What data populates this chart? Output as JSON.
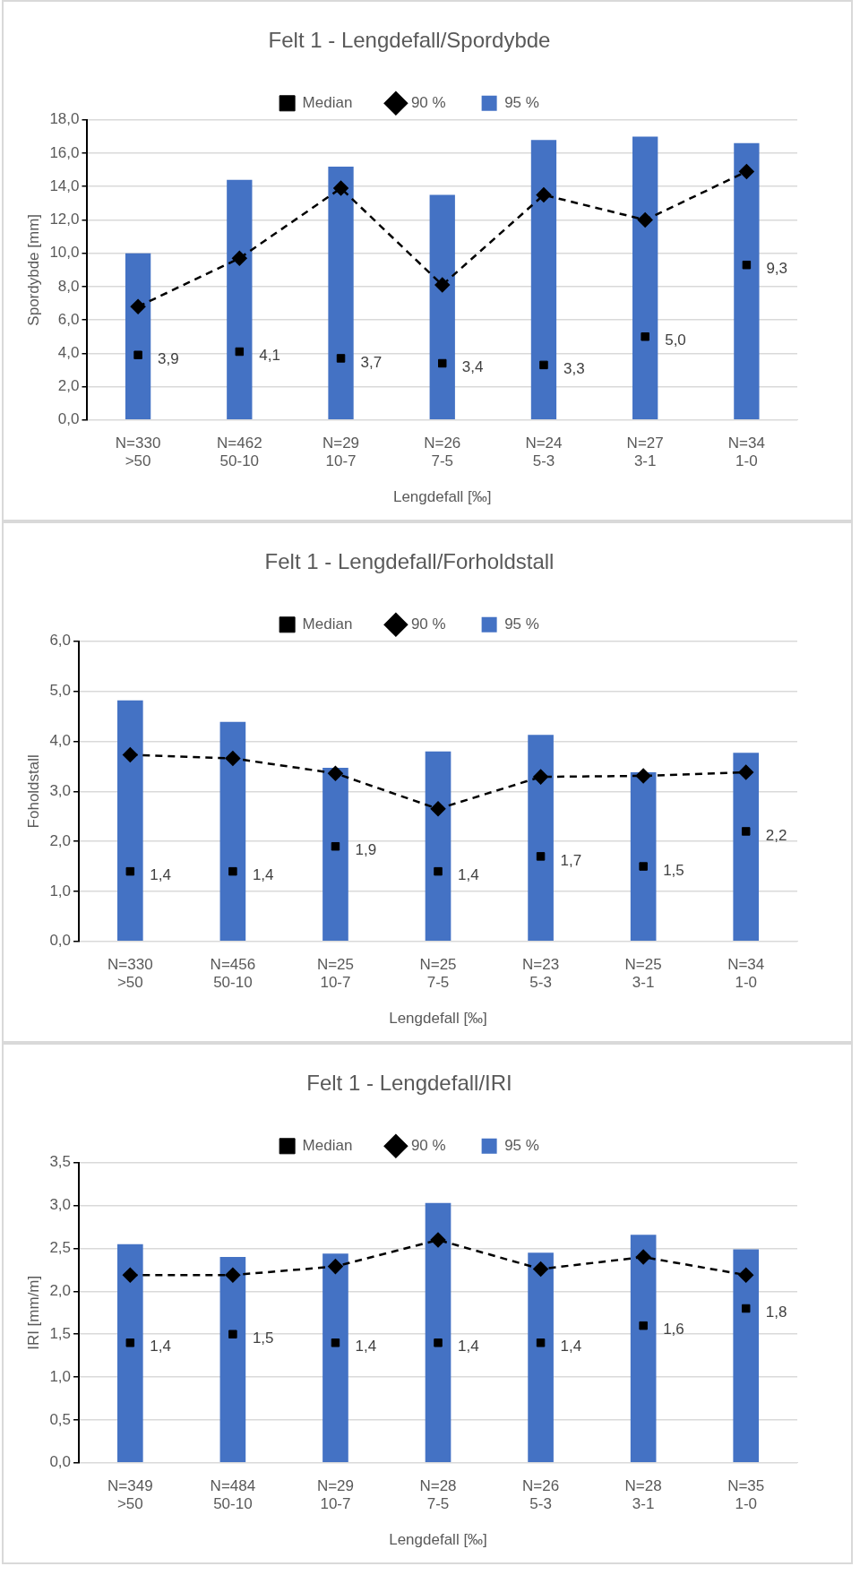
{
  "chart_data": [
    {
      "type": "bar",
      "title": "Felt 1 - Lengdefall/Spordybde",
      "xlabel": "Lengdefall [‰]",
      "ylabel": "Spordybde [mm]",
      "legend": "top",
      "grid": "y",
      "categories": [
        "N=330\n>50",
        "N=462\n50-10",
        "N=29\n10-7",
        "N=26\n7-5",
        "N=24\n5-3",
        "N=27\n3-1",
        "N=34\n1-0"
      ],
      "ylim": [
        0,
        18
      ],
      "yticks": [
        {
          "value": 0,
          "label": "0,0"
        },
        {
          "value": 2,
          "label": "2,0"
        },
        {
          "value": 4,
          "label": "4,0"
        },
        {
          "value": 6,
          "label": "6,0"
        },
        {
          "value": 8,
          "label": "8,0"
        },
        {
          "value": 10,
          "label": "10,0"
        },
        {
          "value": 12,
          "label": "12,0"
        },
        {
          "value": 14,
          "label": "14,0"
        },
        {
          "value": 16,
          "label": "16,0"
        },
        {
          "value": 18,
          "label": "18,0"
        }
      ],
      "series": [
        {
          "name": "95 %",
          "color": "#4472c4",
          "values": [
            10.0,
            14.4,
            15.2,
            13.5,
            16.8,
            17.0,
            16.6
          ]
        },
        {
          "name": "90 %",
          "type": "line",
          "color": "#000000",
          "marker": "diamond",
          "line_style": "dashed",
          "values": [
            6.8,
            9.7,
            13.9,
            8.1,
            13.5,
            12.0,
            14.9
          ]
        },
        {
          "name": "Median",
          "type": "scatter",
          "color": "#000000",
          "marker": "square",
          "x": [
            "N=330\n>50",
            "N=462\n50-10",
            "N=29\n10-7",
            "N=26\n7-5",
            "N=24\n5-3",
            "N=27\n3-1",
            "N=34\n1-0"
          ],
          "values": [
            3.9,
            4.1,
            3.7,
            3.4,
            3.3,
            5.0,
            9.3
          ],
          "value_labels": [
            "3,9",
            "4,1",
            "3,7",
            "3,4",
            "3,3",
            "5,0",
            "9,3"
          ]
        }
      ]
    },
    {
      "type": "bar",
      "title": "Felt 1 - Lengdefall/Forholdstall",
      "xlabel": "Lengdefall [‰]",
      "ylabel": "Foholdstall",
      "legend": "top",
      "grid": "y",
      "categories": [
        "N=330\n>50",
        "N=456\n50-10",
        "N=25\n10-7",
        "N=25\n7-5",
        "N=23\n5-3",
        "N=25\n3-1",
        "N=34\n1-0"
      ],
      "ylim": [
        0,
        6
      ],
      "yticks": [
        {
          "value": 0,
          "label": "0,0"
        },
        {
          "value": 1,
          "label": "1,0"
        },
        {
          "value": 2,
          "label": "2,0"
        },
        {
          "value": 3,
          "label": "3,0"
        },
        {
          "value": 4,
          "label": "4,0"
        },
        {
          "value": 5,
          "label": "5,0"
        },
        {
          "value": 6,
          "label": "6,0"
        }
      ],
      "series": [
        {
          "name": "95 %",
          "color": "#4472c4",
          "values": [
            4.82,
            4.39,
            3.47,
            3.8,
            4.13,
            3.38,
            3.77
          ]
        },
        {
          "name": "90 %",
          "type": "line",
          "color": "#000000",
          "marker": "diamond",
          "line_style": "dashed",
          "values": [
            3.73,
            3.66,
            3.36,
            2.65,
            3.29,
            3.31,
            3.38
          ]
        },
        {
          "name": "Median",
          "type": "scatter",
          "color": "#000000",
          "marker": "square",
          "x": [
            "N=330\n>50",
            "N=456\n50-10",
            "N=25\n10-7",
            "N=25\n7-5",
            "N=23\n5-3",
            "N=25\n3-1",
            "N=34\n1-0"
          ],
          "values": [
            1.4,
            1.4,
            1.9,
            1.4,
            1.7,
            1.5,
            2.2
          ],
          "value_labels": [
            "1,4",
            "1,4",
            "1,9",
            "1,4",
            "1,7",
            "1,5",
            "2,2"
          ]
        }
      ]
    },
    {
      "type": "bar",
      "title": "Felt 1 - Lengdefall/IRI",
      "xlabel": "Lengdefall [‰]",
      "ylabel": "IRI [mm/m]",
      "legend": "top",
      "grid": "y",
      "categories": [
        "N=349\n>50",
        "N=484\n50-10",
        "N=29\n10-7",
        "N=28\n7-5",
        "N=26\n5-3",
        "N=28\n3-1",
        "N=35\n1-0"
      ],
      "ylim": [
        0,
        3.5
      ],
      "yticks": [
        {
          "value": 0,
          "label": "0,0"
        },
        {
          "value": 0.5,
          "label": "0,5"
        },
        {
          "value": 1,
          "label": "1,0"
        },
        {
          "value": 1.5,
          "label": "1,5"
        },
        {
          "value": 2,
          "label": "2,0"
        },
        {
          "value": 2.5,
          "label": "2,5"
        },
        {
          "value": 3,
          "label": "3,0"
        },
        {
          "value": 3.5,
          "label": "3,5"
        }
      ],
      "series": [
        {
          "name": "95 %",
          "color": "#4472c4",
          "values": [
            2.55,
            2.4,
            2.44,
            3.03,
            2.45,
            2.66,
            2.49
          ]
        },
        {
          "name": "90 %",
          "type": "line",
          "color": "#000000",
          "marker": "diamond",
          "line_style": "dashed",
          "values": [
            2.19,
            2.19,
            2.29,
            2.6,
            2.26,
            2.4,
            2.19
          ]
        },
        {
          "name": "Median",
          "type": "scatter",
          "color": "#000000",
          "marker": "square",
          "x": [
            "N=349\n>50",
            "N=484\n50-10",
            "N=29\n10-7",
            "N=28\n7-5",
            "N=26\n5-3",
            "N=28\n3-1",
            "N=35\n1-0"
          ],
          "values": [
            1.4,
            1.5,
            1.4,
            1.4,
            1.4,
            1.6,
            1.8
          ],
          "value_labels": [
            "1,4",
            "1,5",
            "1,4",
            "1,4",
            "1,4",
            "1,6",
            "1,8"
          ]
        }
      ]
    }
  ]
}
